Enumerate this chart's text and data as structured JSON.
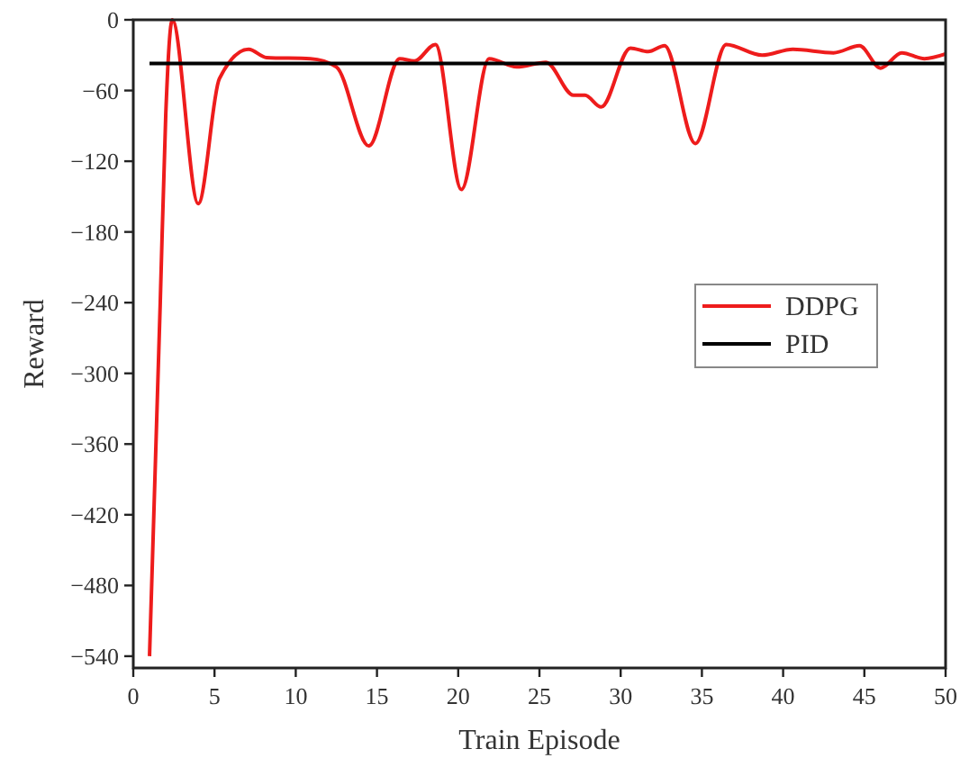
{
  "chart_data": {
    "type": "line",
    "xlabel": "Train Episode",
    "ylabel": "Reward",
    "xlim": [
      0,
      50
    ],
    "xticks": [
      0,
      5,
      10,
      15,
      20,
      25,
      30,
      35,
      40,
      45,
      50
    ],
    "ylim": [
      -550,
      0
    ],
    "yticks": [
      -540,
      -480,
      -420,
      -360,
      -300,
      -240,
      -180,
      -120,
      -60,
      0
    ],
    "legend": "right",
    "grid": false,
    "series": [
      {
        "name": "DDPG",
        "color": "#ee1c1c",
        "x": [
          1,
          1.66,
          2.0,
          2.4,
          4,
          5.3,
          7.1,
          8.2,
          10.9,
          12.5,
          14.5,
          16.4,
          17.3,
          18.6,
          20.2,
          21.9,
          23.6,
          25.4,
          27.1,
          27.8,
          28.8,
          30.6,
          31.7,
          32.7,
          34.6,
          36.5,
          38.7,
          40.6,
          43.1,
          44.7,
          46,
          47.3,
          48.7,
          50
        ],
        "values": [
          -540,
          -240,
          -80,
          0,
          -156,
          -50,
          -25,
          -32,
          -33,
          -40,
          -107,
          -33,
          -35,
          -21,
          -144,
          -33,
          -40,
          -36,
          -64,
          -64,
          -74,
          -24,
          -27,
          -22,
          -105,
          -21,
          -30,
          -25,
          -28,
          -22,
          -41,
          -28,
          -33,
          -29
        ]
      },
      {
        "name": "PID",
        "color": "#000000",
        "x": [
          1,
          50
        ],
        "values": [
          -37,
          -37
        ]
      }
    ]
  }
}
